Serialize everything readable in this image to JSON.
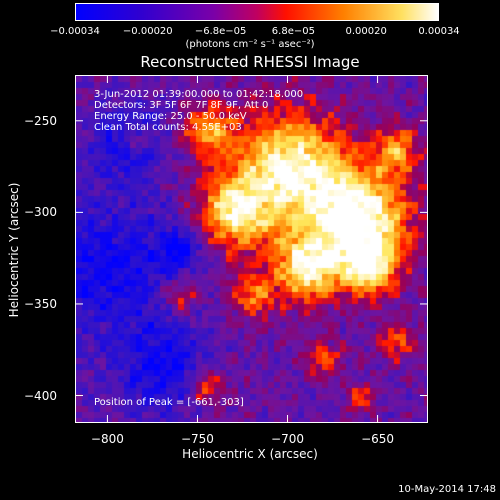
{
  "colorbar": {
    "ticks": [
      "−0.00034",
      "−0.00020",
      "−6.8e−05",
      "6.8e−05",
      "0.00020",
      "0.00034"
    ],
    "units": "(photons cm⁻² s⁻¹ asec⁻²)",
    "colors": [
      "#0000ff",
      "#4000c0",
      "#8000a0",
      "#ff2000",
      "#ff9000",
      "#ffff80",
      "#ffffff"
    ]
  },
  "chart_data": {
    "type": "heatmap",
    "title": "Reconstructed RHESSI Image",
    "xlabel": "Heliocentric X (arcsec)",
    "ylabel": "Heliocentric Y (arcsec)",
    "xlim": [
      -818,
      -622
    ],
    "ylim": [
      -415,
      -225
    ],
    "x_ticks": [
      "−800",
      "−750",
      "−700",
      "−650"
    ],
    "x_tick_values": [
      -800,
      -750,
      -700,
      -650
    ],
    "y_ticks": [
      "−250",
      "−300",
      "−350",
      "−400"
    ],
    "y_tick_values": [
      -250,
      -300,
      -350,
      -400
    ],
    "peak": [
      -661,
      -303
    ],
    "annotations": {
      "time_range": "3-Jun-2012 01:39:00.000 to 01:42:18.000",
      "detectors": "Detectors: 3F 5F 6F 7F 8F 9F, Att 0",
      "energy_range": "Energy Range: 25.0 - 50.0 keV",
      "clean": "Clean     Total counts: 4.55E+03",
      "peak_label": "Position of Peak = [-661,-303]"
    }
  },
  "footer": {
    "timestamp": "10-May-2014 17:48"
  }
}
